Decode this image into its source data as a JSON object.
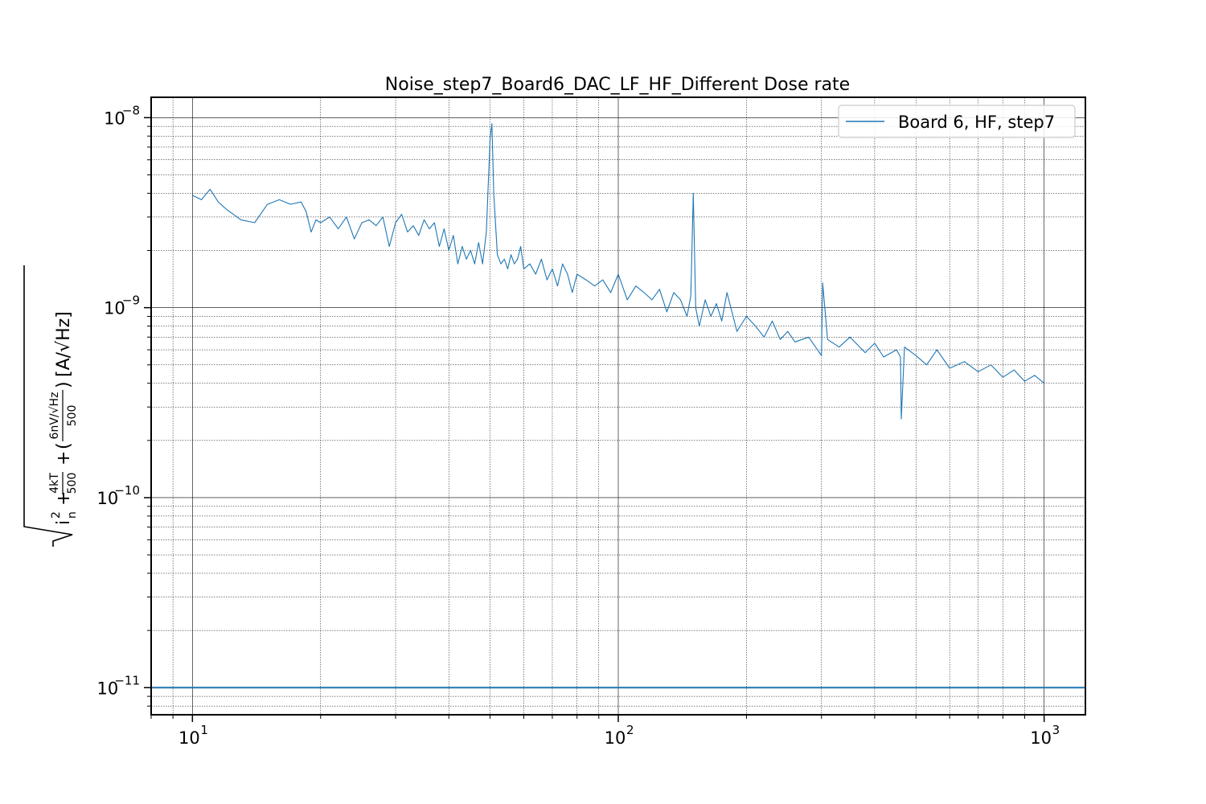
{
  "chart_data": {
    "type": "line",
    "title": "Noise_step7_Board6_DAC_LF_HF_Different Dose rate",
    "xlabel": "",
    "ylabel": "sqrt(i_n^2 + 4kT/500 + (6nV/sqrt(Hz)/500)) [A/sqrt(Hz)]",
    "xscale": "log",
    "yscale": "log",
    "xlim": [
      8,
      1250
    ],
    "ylim": [
      7.2e-12,
      1.28e-08
    ],
    "x_ticks": [
      {
        "base": "10",
        "exp": "1"
      },
      {
        "base": "10",
        "exp": "2"
      },
      {
        "base": "10",
        "exp": "3"
      }
    ],
    "y_ticks": [
      {
        "base": "10",
        "exp": "−8"
      },
      {
        "base": "10",
        "exp": "−9"
      },
      {
        "base": "10",
        "exp": "−10"
      },
      {
        "base": "10",
        "exp": "−11"
      }
    ],
    "grid": true,
    "legend": {
      "position": "top-right",
      "entries": [
        "Board 6, HF, step7"
      ]
    },
    "colors": {
      "series": "#1f77b4",
      "grid": "#000000"
    },
    "horizontal_line": {
      "y": 1e-11
    },
    "series": [
      {
        "name": "Board 6, HF, step7",
        "x": [
          10,
          10.5,
          11,
          11.5,
          12,
          13,
          14,
          15,
          16,
          17,
          18,
          18.5,
          19,
          19.5,
          20,
          21,
          22,
          23,
          24,
          25,
          26,
          27,
          28,
          29,
          30,
          31,
          32,
          33,
          34,
          35,
          36,
          37,
          38,
          39,
          40,
          41,
          42,
          43,
          44,
          45,
          46,
          47,
          48,
          49,
          50,
          50.5,
          51,
          52,
          53,
          54,
          55,
          56,
          57,
          58,
          59,
          60,
          62,
          64,
          66,
          68,
          70,
          72,
          74,
          76,
          78,
          80,
          84,
          88,
          92,
          96,
          100,
          105,
          110,
          115,
          120,
          125,
          130,
          135,
          140,
          145,
          148,
          150,
          152,
          155,
          160,
          165,
          170,
          175,
          180,
          190,
          200,
          210,
          220,
          230,
          240,
          250,
          260,
          280,
          300,
          302,
          310,
          330,
          350,
          380,
          400,
          420,
          450,
          460,
          462,
          470,
          500,
          530,
          560,
          600,
          650,
          700,
          750,
          800,
          850,
          900,
          950,
          1000
        ],
        "y": [
          3.9e-09,
          3.7e-09,
          4.2e-09,
          3.6e-09,
          3.3e-09,
          2.9e-09,
          2.8e-09,
          3.5e-09,
          3.7e-09,
          3.5e-09,
          3.6e-09,
          3.2e-09,
          2.5e-09,
          2.9e-09,
          2.8e-09,
          3e-09,
          2.6e-09,
          3e-09,
          2.3e-09,
          2.8e-09,
          2.9e-09,
          2.7e-09,
          3e-09,
          2.1e-09,
          2.8e-09,
          3.1e-09,
          2.5e-09,
          2.7e-09,
          2.4e-09,
          2.9e-09,
          2.6e-09,
          2.8e-09,
          2.1e-09,
          2.6e-09,
          2e-09,
          2.4e-09,
          1.7e-09,
          2.1e-09,
          1.8e-09,
          2e-09,
          1.7e-09,
          2.2e-09,
          1.7e-09,
          2.5e-09,
          7.8e-09,
          9.3e-09,
          4e-09,
          1.9e-09,
          1.7e-09,
          1.8e-09,
          1.6e-09,
          1.9e-09,
          1.7e-09,
          1.8e-09,
          2.1e-09,
          1.6e-09,
          1.7e-09,
          1.5e-09,
          1.8e-09,
          1.4e-09,
          1.6e-09,
          1.3e-09,
          1.7e-09,
          1.5e-09,
          1.2e-09,
          1.5e-09,
          1.4e-09,
          1.3e-09,
          1.4e-09,
          1.2e-09,
          1.5e-09,
          1.1e-09,
          1.3e-09,
          1.2e-09,
          1.1e-09,
          1.25e-09,
          9.5e-10,
          1.2e-09,
          1.1e-09,
          9e-10,
          1.15e-09,
          4e-09,
          1e-09,
          8e-10,
          1.1e-09,
          9e-10,
          1.05e-09,
          8.5e-10,
          1.2e-09,
          7.5e-10,
          9e-10,
          8e-10,
          7e-10,
          8.5e-10,
          6.8e-10,
          7.5e-10,
          6.6e-10,
          7e-10,
          5.6e-10,
          1.35e-09,
          6.8e-10,
          6.2e-10,
          7e-10,
          5.8e-10,
          6.5e-10,
          5.5e-10,
          6e-10,
          5.5e-10,
          2.6e-10,
          6.2e-10,
          5.6e-10,
          5e-10,
          6e-10,
          4.8e-10,
          5.2e-10,
          4.6e-10,
          5e-10,
          4.3e-10,
          4.7e-10,
          4.1e-10,
          4.4e-10,
          4e-10
        ]
      }
    ]
  }
}
